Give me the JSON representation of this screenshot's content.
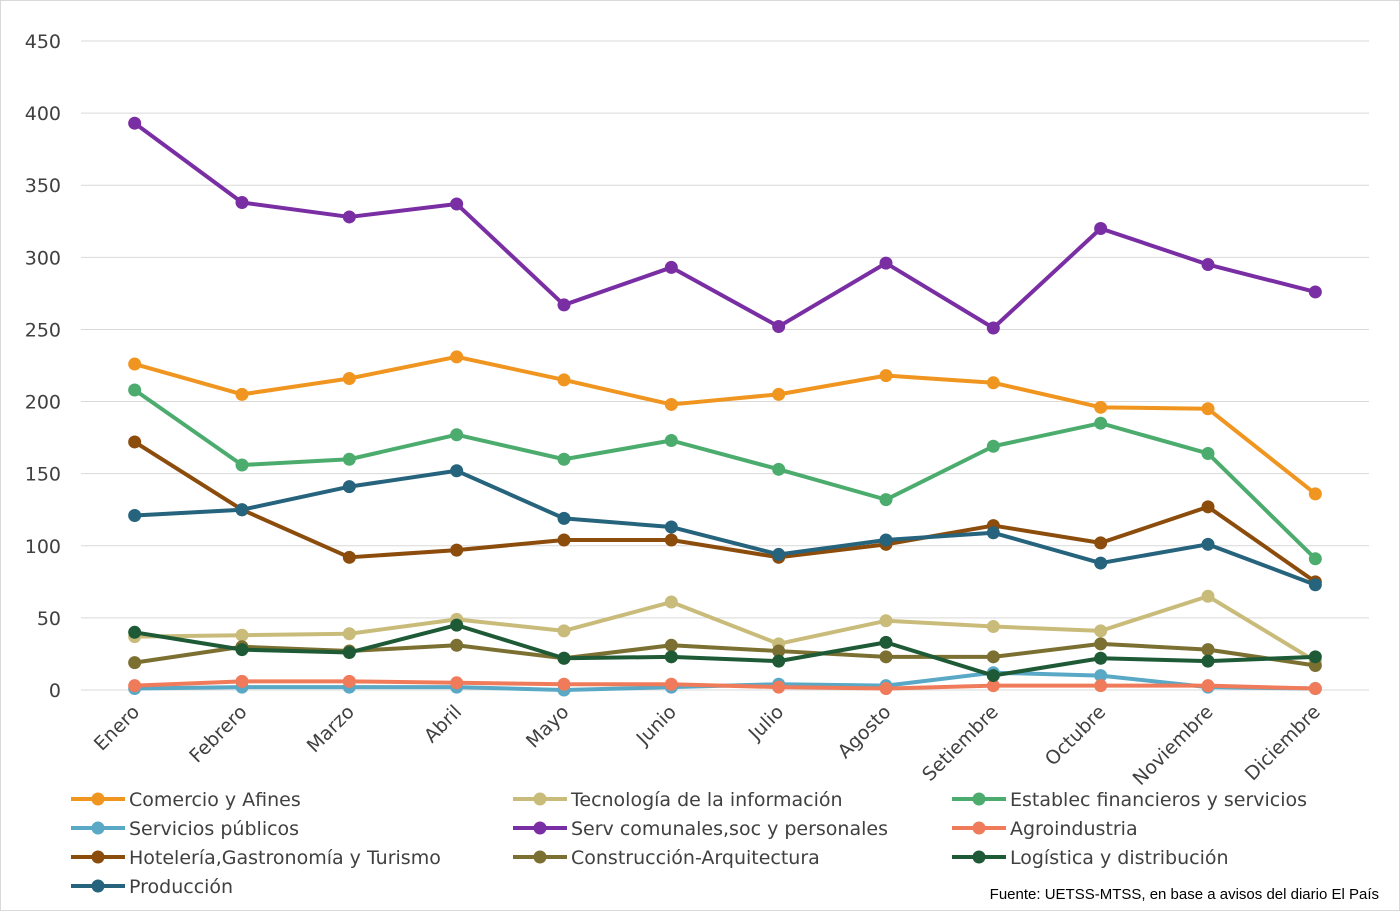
{
  "chart_data": {
    "type": "line",
    "title": "",
    "xlabel": "",
    "ylabel": "",
    "ylim": [
      0,
      450
    ],
    "yticks": [
      0,
      50,
      100,
      150,
      200,
      250,
      300,
      350,
      400,
      450
    ],
    "grid": true,
    "legend_position": "bottom",
    "categories": [
      "Enero",
      "Febrero",
      "Marzo",
      "Abril",
      "Mayo",
      "Junio",
      "Julio",
      "Agosto",
      "Setiembre",
      "Octubre",
      "Noviembre",
      "Diciembre"
    ],
    "series": [
      {
        "name": "Comercio y Afines",
        "color": "#f0951f",
        "values": [
          226,
          205,
          216,
          231,
          215,
          198,
          205,
          218,
          213,
          196,
          195,
          136
        ]
      },
      {
        "name": "Tecnología de la información",
        "color": "#c9bc7b",
        "values": [
          37,
          38,
          39,
          49,
          41,
          61,
          32,
          48,
          44,
          41,
          65,
          20
        ]
      },
      {
        "name": "Establec financieros y servicios",
        "color": "#4cac6e",
        "values": [
          208,
          156,
          160,
          177,
          160,
          173,
          153,
          132,
          169,
          185,
          164,
          91
        ]
      },
      {
        "name": "Servicios públicos",
        "color": "#59a8c6",
        "values": [
          1,
          2,
          2,
          2,
          0,
          2,
          4,
          3,
          12,
          10,
          2,
          1
        ]
      },
      {
        "name": "Serv comunales,soc y personales",
        "color": "#7a2ea3",
        "values": [
          393,
          338,
          328,
          337,
          267,
          293,
          252,
          296,
          251,
          320,
          295,
          276
        ]
      },
      {
        "name": "Agroindustria",
        "color": "#f07b5a",
        "values": [
          3,
          6,
          6,
          5,
          4,
          4,
          2,
          1,
          3,
          3,
          3,
          1
        ]
      },
      {
        "name": "Hotelería,Gastronomía y Turismo",
        "color": "#8b4c0c",
        "values": [
          172,
          125,
          92,
          97,
          104,
          104,
          92,
          101,
          114,
          102,
          127,
          75
        ]
      },
      {
        "name": "Construcción-Arquitectura",
        "color": "#7b7031",
        "values": [
          19,
          30,
          27,
          31,
          22,
          31,
          27,
          23,
          23,
          32,
          28,
          17
        ]
      },
      {
        "name": "Logística y distribución",
        "color": "#1e5a36",
        "values": [
          40,
          28,
          26,
          45,
          22,
          23,
          20,
          33,
          10,
          22,
          20,
          23
        ]
      },
      {
        "name": "Producción",
        "color": "#26637d",
        "values": [
          121,
          125,
          141,
          152,
          119,
          113,
          94,
          104,
          109,
          88,
          101,
          73
        ]
      }
    ],
    "source_note": "Fuente: UETSS-MTSS, en base a avisos del diario El País"
  }
}
